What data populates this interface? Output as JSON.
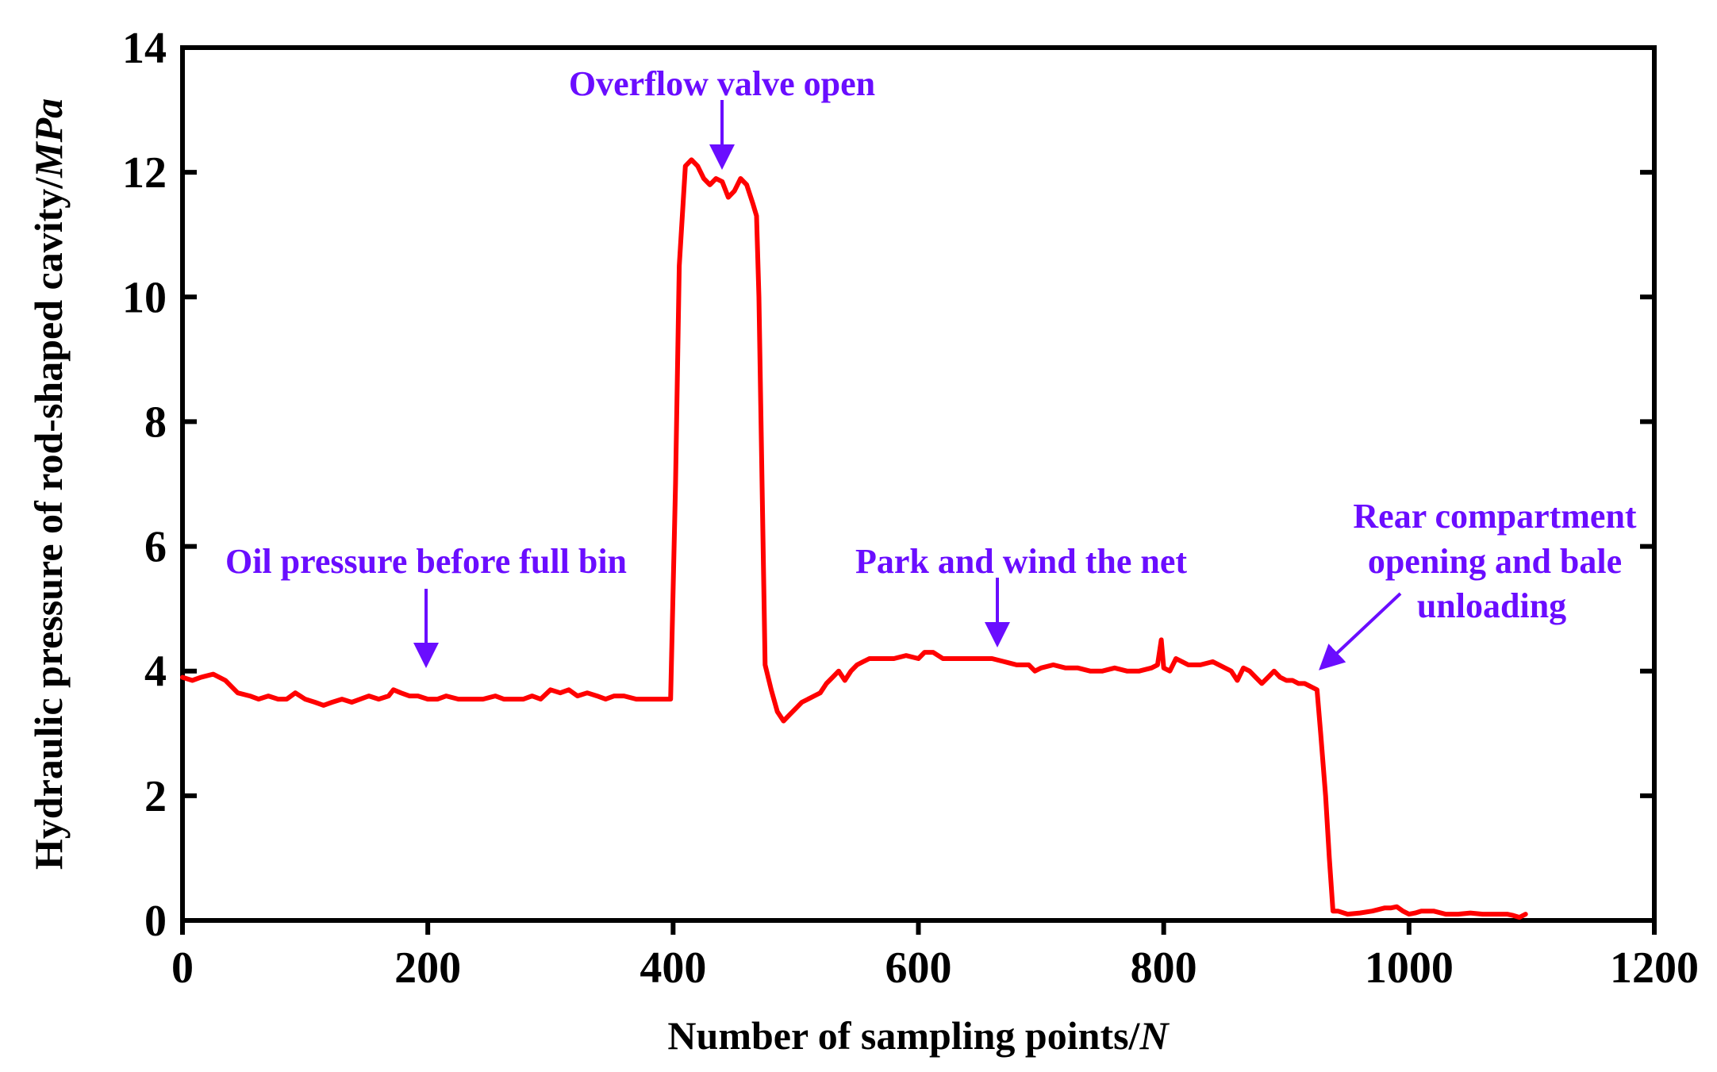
{
  "chart_data": {
    "type": "line",
    "xlabel": "Number of sampling points/",
    "xlabel_unit": "N",
    "ylabel": "Hydraulic pressure of rod-shaped cavity/",
    "ylabel_unit": "MPa",
    "xlim": [
      0,
      1200
    ],
    "ylim": [
      0,
      14
    ],
    "xticks": [
      0,
      200,
      400,
      600,
      800,
      1000,
      1200
    ],
    "yticks": [
      0,
      2,
      4,
      6,
      8,
      10,
      12,
      14
    ],
    "grid": false,
    "colors": {
      "series": "#ff0000",
      "annotation": "#6a0dff",
      "axis": "#000000"
    },
    "series": [
      {
        "name": "Hydraulic pressure",
        "x": [
          0,
          8,
          15,
          25,
          35,
          45,
          55,
          62,
          70,
          78,
          85,
          92,
          100,
          108,
          115,
          122,
          130,
          138,
          145,
          152,
          160,
          168,
          172,
          178,
          185,
          192,
          200,
          208,
          215,
          225,
          235,
          245,
          255,
          262,
          270,
          278,
          285,
          292,
          300,
          308,
          315,
          322,
          330,
          338,
          345,
          352,
          360,
          370,
          380,
          390,
          398,
          402,
          405,
          410,
          415,
          420,
          425,
          430,
          435,
          440,
          445,
          450,
          455,
          460,
          465,
          468,
          470,
          475,
          480,
          485,
          490,
          495,
          500,
          505,
          510,
          515,
          520,
          525,
          530,
          535,
          540,
          545,
          550,
          555,
          560,
          570,
          580,
          590,
          600,
          605,
          612,
          620,
          630,
          640,
          650,
          660,
          670,
          680,
          690,
          695,
          700,
          710,
          720,
          730,
          740,
          750,
          760,
          770,
          780,
          790,
          795,
          798,
          800,
          805,
          810,
          815,
          820,
          830,
          840,
          850,
          855,
          860,
          865,
          870,
          875,
          880,
          885,
          890,
          895,
          900,
          905,
          910,
          915,
          920,
          925,
          928,
          932,
          935,
          938,
          942,
          950,
          960,
          970,
          980,
          985,
          990,
          995,
          1000,
          1005,
          1010,
          1020,
          1030,
          1040,
          1050,
          1060,
          1070,
          1080,
          1085,
          1090,
          1095
        ],
        "y": [
          3.9,
          3.85,
          3.9,
          3.95,
          3.85,
          3.65,
          3.6,
          3.55,
          3.6,
          3.55,
          3.55,
          3.65,
          3.55,
          3.5,
          3.45,
          3.5,
          3.55,
          3.5,
          3.55,
          3.6,
          3.55,
          3.6,
          3.7,
          3.65,
          3.6,
          3.6,
          3.55,
          3.55,
          3.6,
          3.55,
          3.55,
          3.55,
          3.6,
          3.55,
          3.55,
          3.55,
          3.6,
          3.55,
          3.7,
          3.65,
          3.7,
          3.6,
          3.65,
          3.6,
          3.55,
          3.6,
          3.6,
          3.55,
          3.55,
          3.55,
          3.55,
          7.0,
          10.5,
          12.1,
          12.2,
          12.1,
          11.9,
          11.8,
          11.9,
          11.85,
          11.6,
          11.7,
          11.9,
          11.8,
          11.5,
          11.3,
          10.0,
          4.1,
          3.7,
          3.35,
          3.2,
          3.3,
          3.4,
          3.5,
          3.55,
          3.6,
          3.65,
          3.8,
          3.9,
          4.0,
          3.85,
          4.0,
          4.1,
          4.15,
          4.2,
          4.2,
          4.2,
          4.25,
          4.2,
          4.3,
          4.3,
          4.2,
          4.2,
          4.2,
          4.2,
          4.2,
          4.15,
          4.1,
          4.1,
          4.0,
          4.05,
          4.1,
          4.05,
          4.05,
          4.0,
          4.0,
          4.05,
          4.0,
          4.0,
          4.05,
          4.1,
          4.5,
          4.05,
          4.0,
          4.2,
          4.15,
          4.1,
          4.1,
          4.15,
          4.05,
          4.0,
          3.85,
          4.05,
          4.0,
          3.9,
          3.8,
          3.9,
          4.0,
          3.9,
          3.85,
          3.85,
          3.8,
          3.8,
          3.75,
          3.7,
          3.0,
          2.0,
          1.0,
          0.15,
          0.15,
          0.1,
          0.12,
          0.15,
          0.2,
          0.2,
          0.22,
          0.15,
          0.1,
          0.12,
          0.15,
          0.15,
          0.1,
          0.1,
          0.12,
          0.1,
          0.1,
          0.1,
          0.08,
          0.05,
          0.1
        ]
      }
    ],
    "annotations": [
      {
        "text": "Overflow valve open"
      },
      {
        "text": "Oil pressure before full bin"
      },
      {
        "text": "Park and wind the net"
      },
      {
        "lines": [
          "Rear compartment",
          "opening and bale",
          "unloading"
        ]
      }
    ]
  }
}
